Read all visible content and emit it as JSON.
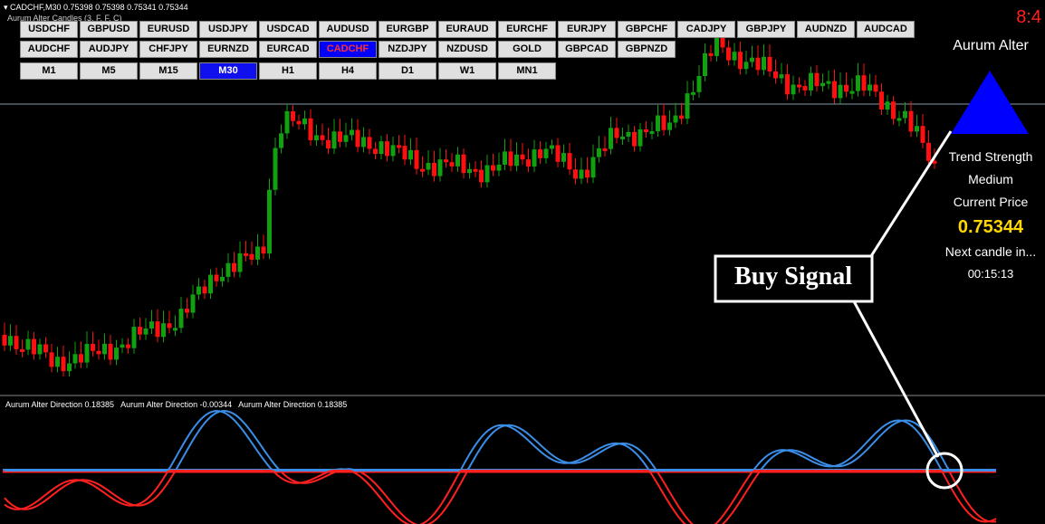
{
  "header": {
    "symbol_line": "CADCHF,M30  0.75398 0.75398 0.75341 0.75344",
    "indicator_name": "Aurum Alter Candles (3, F, F, C)"
  },
  "symbols": [
    [
      "USDCHF",
      "GBPUSD",
      "EURUSD",
      "USDJPY",
      "USDCAD",
      "AUDUSD",
      "EURGBP",
      "EURAUD",
      "EURCHF",
      "EURJPY",
      "GBPCHF",
      "CADJPY",
      "GBPJPY",
      "AUDNZD",
      "AUDCAD"
    ],
    [
      "AUDCHF",
      "AUDJPY",
      "CHFJPY",
      "EURNZD",
      "EURCAD",
      "CADCHF",
      "NZDJPY",
      "NZDUSD",
      "GOLD",
      "GBPCAD",
      "GBPNZD"
    ]
  ],
  "timeframes": [
    "M1",
    "M5",
    "M15",
    "M30",
    "H1",
    "H4",
    "D1",
    "W1",
    "MN1"
  ],
  "active_symbol": "CADCHF",
  "active_timeframe": "M30",
  "panel": {
    "clock": "8:4",
    "name": "Aurum Alter",
    "trend_label": "Trend Strength",
    "trend_value": "Medium",
    "price_label": "Current Price",
    "price": "0.75344",
    "next_label": "Next candle in...",
    "countdown": "00:15:13"
  },
  "indicator_labels": [
    "Aurum Alter Direction 0.18385",
    "Aurum Alter Direction -0.00344",
    "Aurum Alter Direction 0.18385"
  ],
  "signal": "Buy Signal"
}
